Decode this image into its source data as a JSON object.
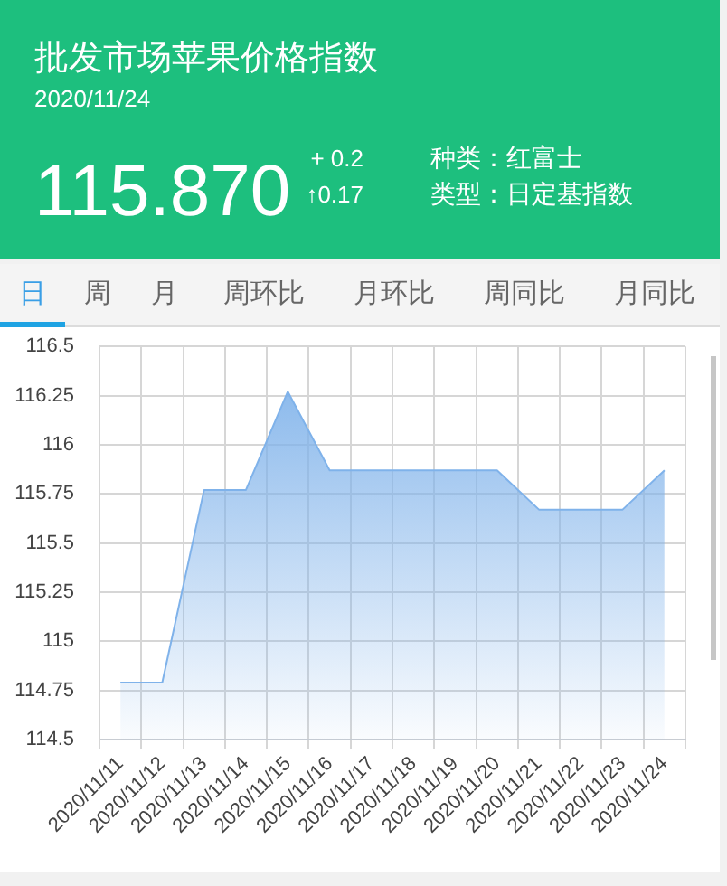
{
  "chart_data": {
    "type": "area",
    "title": "批发市场苹果价格指数",
    "subtitle": "2020/11/24",
    "annotations": [
      "115.870",
      "+ 0.2",
      "↑0.17",
      "种类：红富士",
      "类型：日定基指数",
      "日",
      "周",
      "月",
      "周环比",
      "月环比",
      "周同比",
      "月同比"
    ],
    "categories": [
      "2020/11/11",
      "2020/11/12",
      "2020/11/13",
      "2020/11/14",
      "2020/11/15",
      "2020/11/16",
      "2020/11/17",
      "2020/11/18",
      "2020/11/19",
      "2020/11/20",
      "2020/11/21",
      "2020/11/22",
      "2020/11/23",
      "2020/11/24"
    ],
    "values": [
      114.79,
      114.79,
      115.77,
      115.77,
      116.27,
      115.87,
      115.87,
      115.87,
      115.87,
      115.87,
      115.67,
      115.67,
      115.67,
      115.87
    ],
    "color": "#7fb2ea",
    "ylim": [
      114.5,
      116.5
    ],
    "yticks": [
      114.5,
      114.75,
      115,
      115.25,
      115.5,
      115.75,
      116,
      116.25,
      116.5
    ],
    "grid": true
  }
}
